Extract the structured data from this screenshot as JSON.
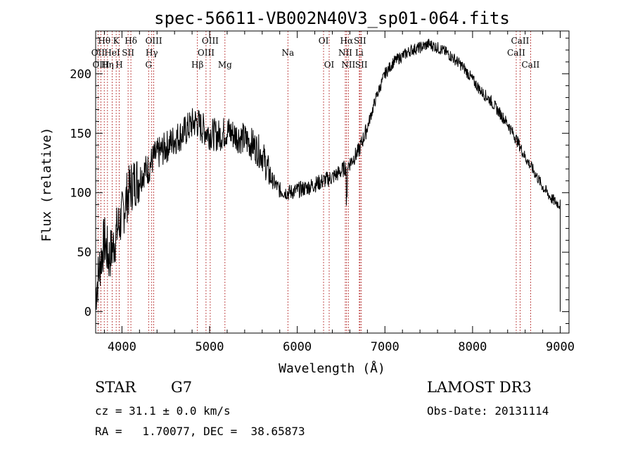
{
  "chart_data": {
    "type": "line",
    "title": "spec-56611-VB002N40V3_sp01-064.fits",
    "xlabel": "Wavelength (Å)",
    "ylabel": "Flux (relative)",
    "xlim": [
      3700,
      9100
    ],
    "ylim": [
      -18,
      236
    ],
    "xticks": [
      4000,
      5000,
      6000,
      7000,
      8000,
      9000
    ],
    "xtick_labels": [
      "4000",
      "5000",
      "6000",
      "7000",
      "8000",
      "9000"
    ],
    "yticks": [
      0,
      50,
      100,
      150,
      200
    ],
    "ytick_labels": [
      "0",
      "50",
      "100",
      "150",
      "200"
    ],
    "line_color": "#000000",
    "marker_color": "#b22222",
    "spectrum_anchor_points": [
      [
        3700,
        15
      ],
      [
        3750,
        40
      ],
      [
        3800,
        60
      ],
      [
        3850,
        45
      ],
      [
        3900,
        55
      ],
      [
        3950,
        70
      ],
      [
        4000,
        80
      ],
      [
        4050,
        95
      ],
      [
        4100,
        105
      ],
      [
        4150,
        110
      ],
      [
        4200,
        112
      ],
      [
        4250,
        118
      ],
      [
        4300,
        120
      ],
      [
        4350,
        128
      ],
      [
        4400,
        132
      ],
      [
        4500,
        138
      ],
      [
        4600,
        145
      ],
      [
        4700,
        150
      ],
      [
        4800,
        158
      ],
      [
        4850,
        160
      ],
      [
        4900,
        155
      ],
      [
        5000,
        150
      ],
      [
        5100,
        148
      ],
      [
        5200,
        152
      ],
      [
        5300,
        148
      ],
      [
        5400,
        145
      ],
      [
        5500,
        140
      ],
      [
        5600,
        132
      ],
      [
        5700,
        112
      ],
      [
        5800,
        102
      ],
      [
        5900,
        100
      ],
      [
        6000,
        102
      ],
      [
        6100,
        104
      ],
      [
        6200,
        107
      ],
      [
        6300,
        110
      ],
      [
        6400,
        113
      ],
      [
        6500,
        118
      ],
      [
        6600,
        125
      ],
      [
        6700,
        135
      ],
      [
        6800,
        155
      ],
      [
        6900,
        180
      ],
      [
        7000,
        200
      ],
      [
        7100,
        210
      ],
      [
        7200,
        215
      ],
      [
        7300,
        220
      ],
      [
        7400,
        222
      ],
      [
        7500,
        225
      ],
      [
        7600,
        222
      ],
      [
        7700,
        218
      ],
      [
        7800,
        212
      ],
      [
        7900,
        205
      ],
      [
        8000,
        195
      ],
      [
        8100,
        185
      ],
      [
        8200,
        178
      ],
      [
        8300,
        168
      ],
      [
        8400,
        158
      ],
      [
        8500,
        145
      ],
      [
        8600,
        130
      ],
      [
        8700,
        118
      ],
      [
        8800,
        105
      ],
      [
        8900,
        95
      ],
      [
        8950,
        92
      ],
      [
        9000,
        90
      ]
    ],
    "lines": [
      {
        "name": "Hθ",
        "x": 3798,
        "label_row": 1
      },
      {
        "name": "OII",
        "x": 3727,
        "label_row": 2
      },
      {
        "name": "OIII",
        "x": 3760,
        "label_row": 3
      },
      {
        "name": "HeI",
        "x": 3889,
        "label_row": 2
      },
      {
        "name": "K",
        "x": 3934,
        "label_row": 1
      },
      {
        "name": "Hη",
        "x": 3835,
        "label_row": 3
      },
      {
        "name": "SII",
        "x": 4070,
        "label_row": 2
      },
      {
        "name": "H",
        "x": 3969,
        "label_row": 3
      },
      {
        "name": "Hδ",
        "x": 4102,
        "label_row": 1
      },
      {
        "name": "OIII",
        "x": 4363,
        "label_row": 1
      },
      {
        "name": "Hγ",
        "x": 4340,
        "label_row": 2
      },
      {
        "name": "G",
        "x": 4304,
        "label_row": 3
      },
      {
        "name": "Hβ",
        "x": 4861,
        "label_row": 3
      },
      {
        "name": "OIII",
        "x": 5007,
        "label_row": 1
      },
      {
        "name": "OIII",
        "x": 4959,
        "label_row": 2
      },
      {
        "name": "Mg",
        "x": 5175,
        "label_row": 3
      },
      {
        "name": "Na",
        "x": 5893,
        "label_row": 2
      },
      {
        "name": "OI",
        "x": 6300,
        "label_row": 1
      },
      {
        "name": "OI",
        "x": 6364,
        "label_row": 3
      },
      {
        "name": "Hα",
        "x": 6563,
        "label_row": 1
      },
      {
        "name": "NII",
        "x": 6548,
        "label_row": 2
      },
      {
        "name": "NII",
        "x": 6583,
        "label_row": 3
      },
      {
        "name": "SII",
        "x": 6716,
        "label_row": 1
      },
      {
        "name": "Li",
        "x": 6708,
        "label_row": 2
      },
      {
        "name": "SII",
        "x": 6731,
        "label_row": 3
      },
      {
        "name": "CaII",
        "x": 8542,
        "label_row": 1
      },
      {
        "name": "CaII",
        "x": 8498,
        "label_row": 2
      },
      {
        "name": "CaII",
        "x": 8662,
        "label_row": 3
      }
    ]
  },
  "info": {
    "object_class": "STAR",
    "subclass": "G7",
    "survey": "LAMOST DR3",
    "cz_text": "cz = 31.1 ± 0.0 km/s",
    "obs_date_text": "Obs-Date: 20131114",
    "radec_text": "RA =   1.70077, DEC =  38.65873"
  }
}
